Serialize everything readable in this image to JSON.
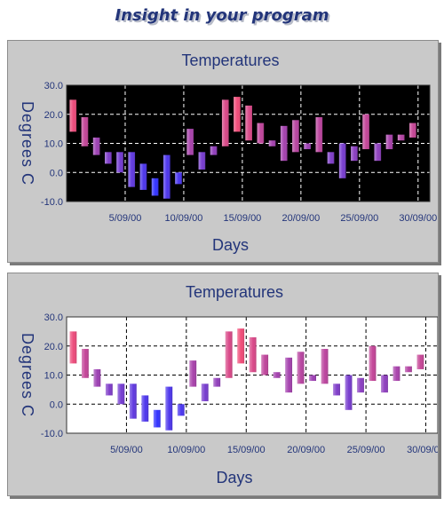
{
  "banner": {
    "text": "Insight in your program"
  },
  "chart_data": [
    {
      "type": "floating-bar",
      "variant": "dark",
      "title": "Temperatures",
      "xlabel": "Days",
      "ylabel": "Degrees C",
      "ylim": [
        -10,
        30
      ],
      "yticks": [
        "30.0",
        "20.0",
        "10.0",
        "0.0",
        "-10.0"
      ],
      "xticks": [
        "5/09/00",
        "10/09/00",
        "15/09/00",
        "20/09/00",
        "25/09/00",
        "30/09/00"
      ],
      "grid": true,
      "colors": {
        "low": "#3333ff",
        "high": "#ff4d6d",
        "background": "#000000",
        "grid": "#ffffff"
      },
      "days": [
        "1/09/00",
        "2/09/00",
        "3/09/00",
        "4/09/00",
        "5/09/00",
        "6/09/00",
        "7/09/00",
        "8/09/00",
        "9/09/00",
        "10/09/00",
        "11/09/00",
        "12/09/00",
        "13/09/00",
        "14/09/00",
        "15/09/00",
        "16/09/00",
        "17/09/00",
        "18/09/00",
        "19/09/00",
        "20/09/00",
        "21/09/00",
        "22/09/00",
        "23/09/00",
        "24/09/00",
        "25/09/00",
        "26/09/00",
        "27/09/00",
        "28/09/00",
        "29/09/00",
        "30/09/00",
        "1/10/00"
      ],
      "lows": [
        14,
        9,
        6,
        3,
        0,
        -5,
        -6,
        -8,
        -9,
        -4,
        6,
        1,
        6,
        9,
        14,
        11,
        10,
        9,
        4,
        7,
        8,
        7,
        3,
        -2,
        4,
        8,
        4,
        8,
        11,
        12
      ],
      "highs": [
        25,
        19,
        12,
        7,
        7,
        7,
        3,
        -2,
        6,
        0,
        15,
        7,
        9,
        25,
        26,
        23,
        17,
        11,
        16,
        18,
        10,
        19,
        7,
        10,
        9,
        20,
        10,
        13,
        13,
        17
      ]
    },
    {
      "type": "floating-bar",
      "variant": "light",
      "title": "Temperatures",
      "xlabel": "Days",
      "ylabel": "Degrees C",
      "ylim": [
        -10,
        30
      ],
      "yticks": [
        "30.0",
        "20.0",
        "10.0",
        "0.0",
        "-10.0"
      ],
      "xticks": [
        "5/09/00",
        "10/09/00",
        "15/09/00",
        "20/09/00",
        "25/09/00",
        "30/09/00"
      ],
      "grid": true,
      "colors": {
        "low": "#3333ff",
        "high": "#ff4d6d",
        "background": "#ffffff",
        "grid": "#000000"
      },
      "days": [
        "1/09/00",
        "2/09/00",
        "3/09/00",
        "4/09/00",
        "5/09/00",
        "6/09/00",
        "7/09/00",
        "8/09/00",
        "9/09/00",
        "10/09/00",
        "11/09/00",
        "12/09/00",
        "13/09/00",
        "14/09/00",
        "15/09/00",
        "16/09/00",
        "17/09/00",
        "18/09/00",
        "19/09/00",
        "20/09/00",
        "21/09/00",
        "22/09/00",
        "23/09/00",
        "24/09/00",
        "25/09/00",
        "26/09/00",
        "27/09/00",
        "28/09/00",
        "29/09/00",
        "30/09/00",
        "1/10/00"
      ],
      "lows": [
        14,
        9,
        6,
        3,
        0,
        -5,
        -6,
        -8,
        -9,
        -4,
        6,
        1,
        6,
        9,
        14,
        11,
        10,
        9,
        4,
        7,
        8,
        7,
        3,
        -2,
        4,
        8,
        4,
        8,
        11,
        12
      ],
      "highs": [
        25,
        19,
        12,
        7,
        7,
        7,
        3,
        -2,
        6,
        0,
        15,
        7,
        9,
        25,
        26,
        23,
        17,
        11,
        16,
        18,
        10,
        19,
        7,
        10,
        9,
        20,
        10,
        13,
        13,
        17
      ]
    }
  ]
}
